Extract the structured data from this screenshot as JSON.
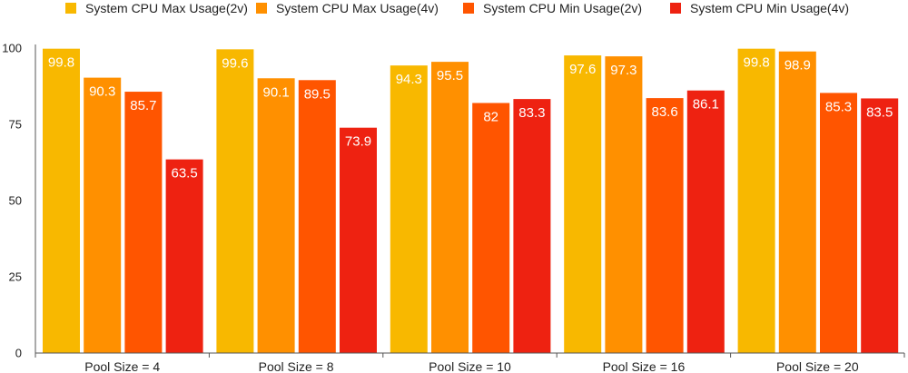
{
  "chart_data": {
    "type": "bar",
    "categories": [
      "Pool Size = 4",
      "Pool Size = 8",
      "Pool Size = 10",
      "Pool Size = 16",
      "Pool Size = 20"
    ],
    "series": [
      {
        "name": "System CPU Max Usage(2v)",
        "color": "#F8B800",
        "values": [
          99.8,
          99.6,
          94.3,
          97.6,
          99.8
        ]
      },
      {
        "name": "System CPU Max Usage(4v)",
        "color": "#FF9000",
        "values": [
          90.3,
          90.1,
          95.5,
          97.3,
          98.9
        ]
      },
      {
        "name": "System CPU Min Usage(2v)",
        "color": "#FF5500",
        "values": [
          85.7,
          89.5,
          82,
          83.6,
          85.3
        ]
      },
      {
        "name": "System CPU Min Usage(4v)",
        "color": "#EE2211",
        "values": [
          63.5,
          73.9,
          83.3,
          86.1,
          83.5
        ]
      }
    ],
    "yticks": [
      "0",
      "25",
      "50",
      "75",
      "100"
    ],
    "ylim": [
      0,
      100
    ],
    "legend_position": "top",
    "grid": false,
    "data_labels": true
  }
}
